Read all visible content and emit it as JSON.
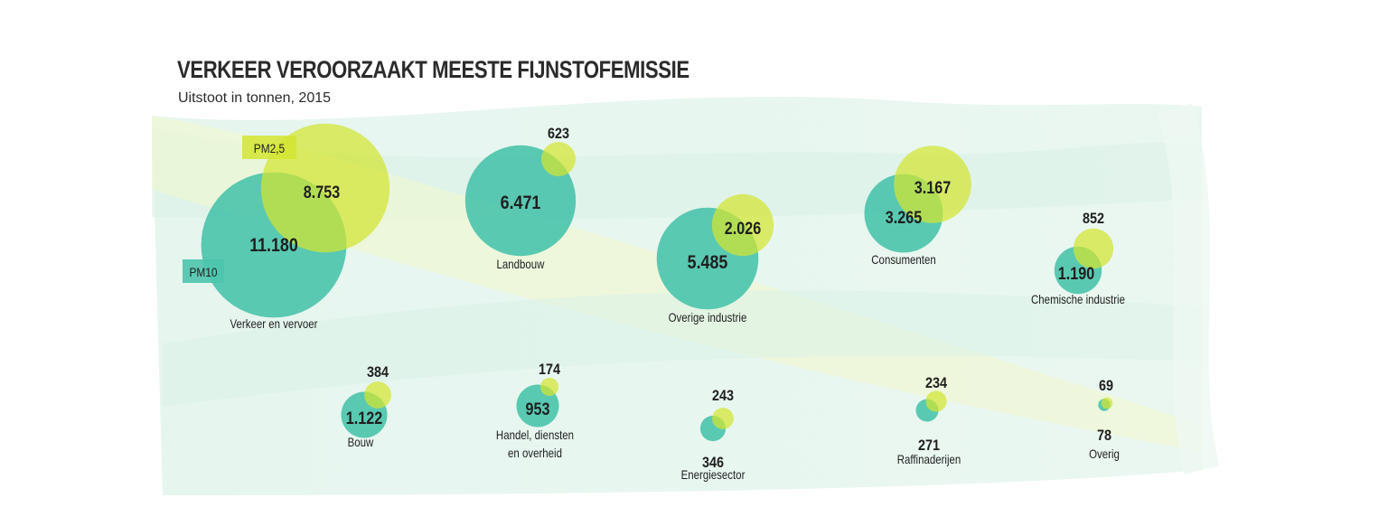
{
  "chart_data": {
    "type": "bubble",
    "title": "VERKEER VEROORZAAKT MEESTE FIJNSTOFEMISSIE",
    "subtitle": "Uitstoot in tonnen, 2015",
    "series": [
      {
        "key": "pm10",
        "name": "PM10",
        "color": "#4dc4ac"
      },
      {
        "key": "pm25",
        "name": "PM2,5",
        "color": "#d2e530"
      }
    ],
    "categories": [
      {
        "name": "Verkeer en vervoer",
        "pm10": 11180,
        "pm10_label": "11.180",
        "pm25": 8753,
        "pm25_label": "8.753"
      },
      {
        "name": "Landbouw",
        "pm10": 6471,
        "pm10_label": "6.471",
        "pm25": 623,
        "pm25_label": "623"
      },
      {
        "name": "Overige industrie",
        "pm10": 5485,
        "pm10_label": "5.485",
        "pm25": 2026,
        "pm25_label": "2.026"
      },
      {
        "name": "Consumenten",
        "pm10": 3265,
        "pm10_label": "3.265",
        "pm25": 3167,
        "pm25_label": "3.167"
      },
      {
        "name": "Chemische industrie",
        "pm10": 1190,
        "pm10_label": "1.190",
        "pm25": 852,
        "pm25_label": "852"
      },
      {
        "name": "Bouw",
        "pm10": 1122,
        "pm10_label": "1.122",
        "pm25": 384,
        "pm25_label": "384"
      },
      {
        "name": "Handel, diensten en overheid",
        "lines": [
          "Handel, diensten",
          "en overheid"
        ],
        "pm10": 953,
        "pm10_label": "953",
        "pm25": 174,
        "pm25_label": "174"
      },
      {
        "name": "Energiesector",
        "pm10": 346,
        "pm10_label": "346",
        "pm25": 243,
        "pm25_label": "243"
      },
      {
        "name": "Raffinaderijen",
        "pm10": 271,
        "pm10_label": "271",
        "pm25": 234,
        "pm25_label": "234"
      },
      {
        "name": "Overig",
        "pm10": 78,
        "pm10_label": "78",
        "pm25": 69,
        "pm25_label": "69"
      }
    ]
  }
}
